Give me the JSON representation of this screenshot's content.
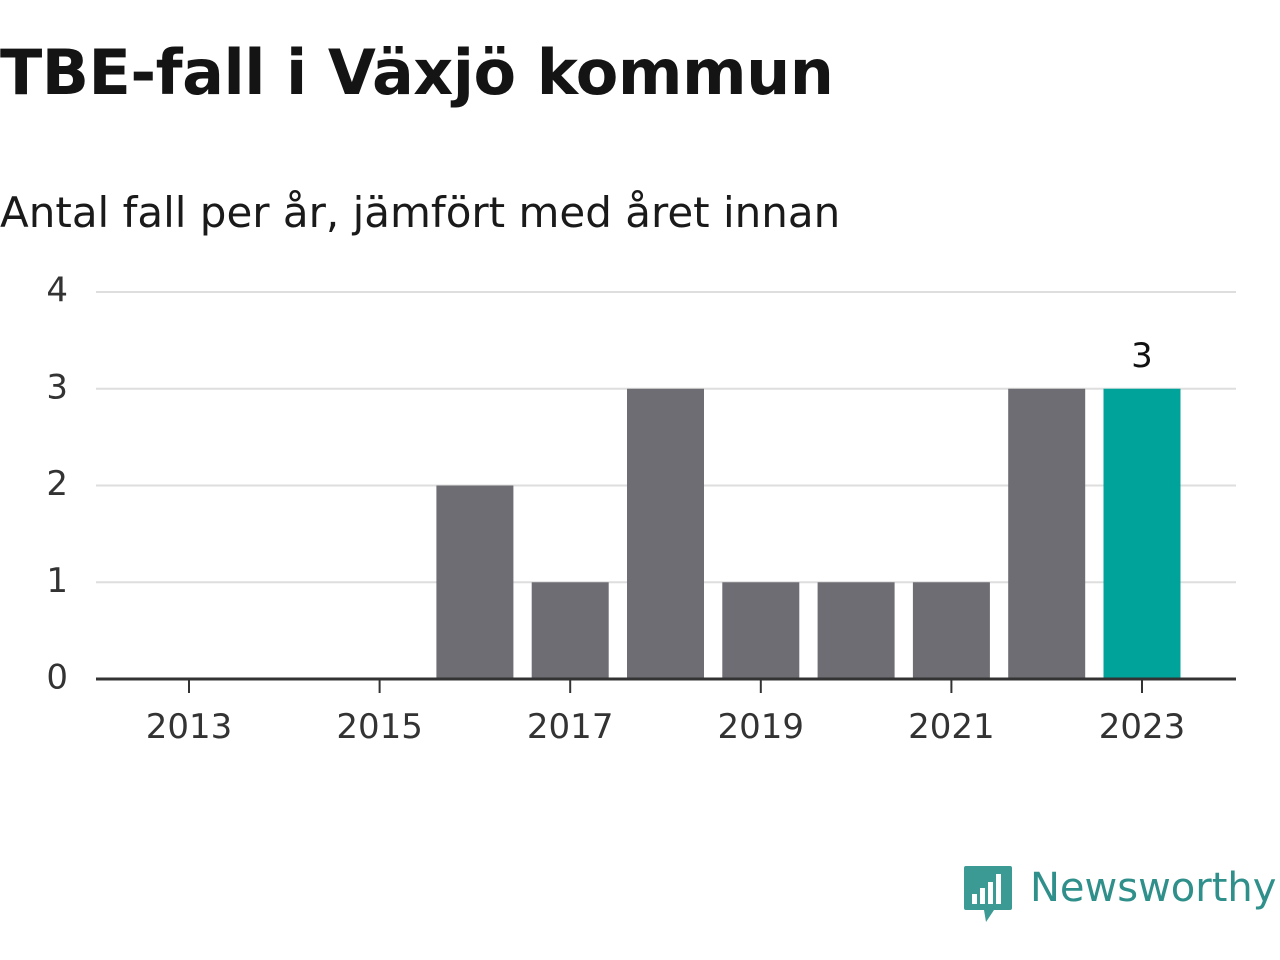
{
  "header": {
    "title": "TBE-fall i Växjö kommun",
    "subtitle": "Antal fall per år, jämfört med året innan"
  },
  "brand": {
    "name": "Newsworthy",
    "icon": "newsworthy-logo-icon",
    "color": "#2f8f8a"
  },
  "colors": {
    "bar": "#6e6d73",
    "highlight": "#00a39a",
    "grid": "#dedede",
    "axis": "#333333"
  },
  "chart_data": {
    "type": "bar",
    "title": "TBE-fall i Växjö kommun",
    "subtitle": "Antal fall per år, jämfört med året innan",
    "xlabel": "",
    "ylabel": "",
    "categories": [
      "2013",
      "2014",
      "2015",
      "2016",
      "2017",
      "2018",
      "2019",
      "2020",
      "2021",
      "2022",
      "2023"
    ],
    "values": [
      0,
      0,
      0,
      2,
      1,
      3,
      1,
      1,
      1,
      3,
      3
    ],
    "highlight_category": "2023",
    "data_labels": [
      {
        "category": "2023",
        "text": "3"
      }
    ],
    "ylim": [
      0,
      4
    ],
    "yticks": [
      "0",
      "1",
      "2",
      "3",
      "4"
    ],
    "xticks": [
      "2013",
      "2015",
      "2017",
      "2019",
      "2021",
      "2023"
    ],
    "grid": true,
    "legend": "none"
  }
}
